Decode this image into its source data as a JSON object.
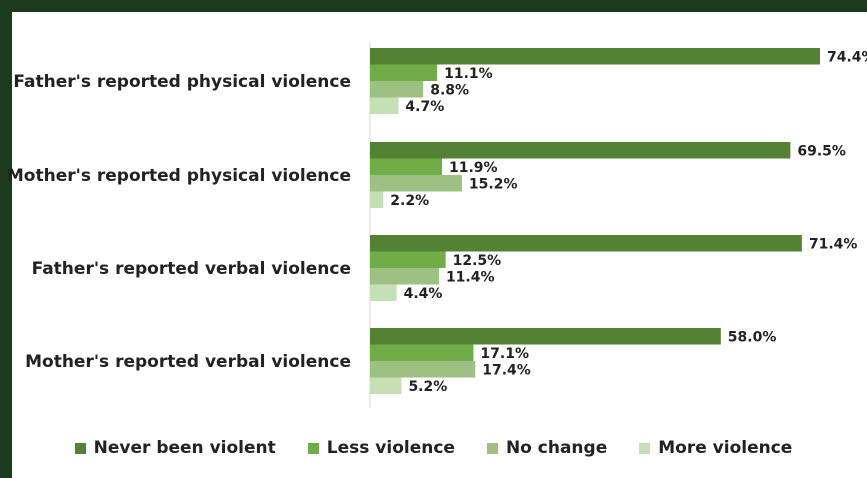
{
  "chart_data": {
    "type": "bar",
    "orientation": "horizontal",
    "categories": [
      "Father's reported physical violence",
      "Mother's reported physical violence",
      "Father's reported verbal violence",
      "Mother's reported verbal violence"
    ],
    "series": [
      {
        "name": "Never been violent",
        "color": "#548235",
        "values": [
          74.4,
          69.5,
          71.4,
          58.0
        ]
      },
      {
        "name": "Less violence",
        "color": "#70ad47",
        "values": [
          11.1,
          11.9,
          12.5,
          17.1
        ]
      },
      {
        "name": "No change",
        "color": "#9dc183",
        "values": [
          8.8,
          15.2,
          11.4,
          17.4
        ]
      },
      {
        "name": "More violence",
        "color": "#c5e0b4",
        "values": [
          4.7,
          2.2,
          4.4,
          5.2
        ]
      }
    ],
    "value_labels": [
      [
        "74.4%",
        "69.5%",
        "71.4%",
        "58.0%"
      ],
      [
        "11.1%",
        "11.9%",
        "12.5%",
        "17.1%"
      ],
      [
        "8.8%",
        "15.2%",
        "11.4%",
        "17.4%"
      ],
      [
        "4.7%",
        "2.2%",
        "4.4%",
        "5.2%"
      ]
    ],
    "value_unit": "%",
    "xlim": [
      0,
      74.4
    ],
    "grid": false,
    "legend_position": "bottom"
  }
}
